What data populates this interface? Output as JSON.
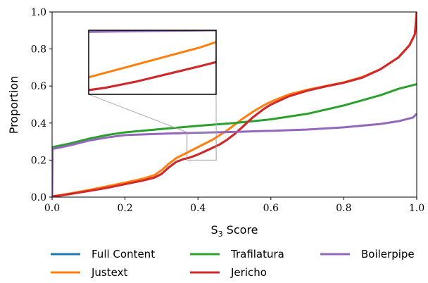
{
  "chart_data": {
    "type": "line",
    "title": "",
    "xlabel_main": "S",
    "xlabel_sub": "3",
    "xlabel_rest": " Score",
    "ylabel": "Proportion",
    "xlim": [
      0.0,
      1.0
    ],
    "ylim": [
      0.0,
      1.0
    ],
    "xticks": [
      "0.0",
      "0.2",
      "0.4",
      "0.6",
      "0.8",
      "1.0"
    ],
    "yticks": [
      "0.0",
      "0.2",
      "0.4",
      "0.6",
      "0.8",
      "1.0"
    ],
    "grid": false,
    "legend_position": "bottom",
    "inset": {
      "xlim": [
        0.37,
        0.45
      ],
      "ylim": [
        0.2,
        0.35
      ]
    },
    "series": [
      {
        "name": "Full Content",
        "color": "#1f77b4",
        "points": [
          [
            0,
            0.0
          ],
          [
            0.001,
            0.004
          ],
          [
            0.02,
            0.008
          ],
          [
            0.05,
            0.017
          ],
          [
            0.1,
            0.033
          ],
          [
            0.15,
            0.05
          ],
          [
            0.2,
            0.07
          ],
          [
            0.25,
            0.09
          ],
          [
            0.28,
            0.105
          ],
          [
            0.3,
            0.125
          ],
          [
            0.32,
            0.16
          ],
          [
            0.34,
            0.19
          ],
          [
            0.36,
            0.205
          ],
          [
            0.38,
            0.215
          ],
          [
            0.4,
            0.23
          ],
          [
            0.42,
            0.248
          ],
          [
            0.44,
            0.266
          ],
          [
            0.46,
            0.285
          ],
          [
            0.48,
            0.31
          ],
          [
            0.5,
            0.34
          ],
          [
            0.52,
            0.375
          ],
          [
            0.55,
            0.43
          ],
          [
            0.58,
            0.475
          ],
          [
            0.6,
            0.5
          ],
          [
            0.65,
            0.545
          ],
          [
            0.7,
            0.575
          ],
          [
            0.75,
            0.598
          ],
          [
            0.8,
            0.618
          ],
          [
            0.85,
            0.645
          ],
          [
            0.9,
            0.69
          ],
          [
            0.95,
            0.755
          ],
          [
            0.98,
            0.82
          ],
          [
            0.995,
            0.88
          ],
          [
            1.0,
            1.0
          ]
        ]
      },
      {
        "name": "Justext",
        "color": "#ff7f0e",
        "points": [
          [
            0,
            0.0
          ],
          [
            0.001,
            0.005
          ],
          [
            0.02,
            0.01
          ],
          [
            0.05,
            0.02
          ],
          [
            0.1,
            0.038
          ],
          [
            0.15,
            0.058
          ],
          [
            0.2,
            0.078
          ],
          [
            0.25,
            0.1
          ],
          [
            0.28,
            0.118
          ],
          [
            0.3,
            0.145
          ],
          [
            0.32,
            0.18
          ],
          [
            0.34,
            0.21
          ],
          [
            0.36,
            0.23
          ],
          [
            0.38,
            0.25
          ],
          [
            0.4,
            0.27
          ],
          [
            0.42,
            0.29
          ],
          [
            0.44,
            0.31
          ],
          [
            0.46,
            0.335
          ],
          [
            0.48,
            0.36
          ],
          [
            0.5,
            0.39
          ],
          [
            0.52,
            0.42
          ],
          [
            0.55,
            0.46
          ],
          [
            0.58,
            0.495
          ],
          [
            0.6,
            0.515
          ],
          [
            0.65,
            0.555
          ],
          [
            0.7,
            0.58
          ],
          [
            0.75,
            0.6
          ],
          [
            0.8,
            0.62
          ],
          [
            0.85,
            0.648
          ],
          [
            0.9,
            0.69
          ],
          [
            0.95,
            0.755
          ],
          [
            0.98,
            0.82
          ],
          [
            0.995,
            0.88
          ],
          [
            1.0,
            1.0
          ]
        ]
      },
      {
        "name": "Trafilatura",
        "color": "#2ca02c",
        "points": [
          [
            0,
            0.0
          ],
          [
            0.001,
            0.27
          ],
          [
            0.05,
            0.29
          ],
          [
            0.1,
            0.315
          ],
          [
            0.15,
            0.335
          ],
          [
            0.2,
            0.35
          ],
          [
            0.3,
            0.368
          ],
          [
            0.4,
            0.385
          ],
          [
            0.5,
            0.4
          ],
          [
            0.6,
            0.42
          ],
          [
            0.7,
            0.45
          ],
          [
            0.8,
            0.495
          ],
          [
            0.9,
            0.55
          ],
          [
            0.95,
            0.585
          ],
          [
            1.0,
            0.61
          ]
        ]
      },
      {
        "name": "Jericho",
        "color": "#d62728",
        "points": [
          [
            0,
            0.0
          ],
          [
            0.001,
            0.004
          ],
          [
            0.02,
            0.008
          ],
          [
            0.05,
            0.017
          ],
          [
            0.1,
            0.033
          ],
          [
            0.15,
            0.05
          ],
          [
            0.2,
            0.07
          ],
          [
            0.25,
            0.09
          ],
          [
            0.28,
            0.105
          ],
          [
            0.3,
            0.125
          ],
          [
            0.32,
            0.16
          ],
          [
            0.34,
            0.19
          ],
          [
            0.36,
            0.205
          ],
          [
            0.38,
            0.215
          ],
          [
            0.4,
            0.23
          ],
          [
            0.42,
            0.248
          ],
          [
            0.44,
            0.266
          ],
          [
            0.46,
            0.285
          ],
          [
            0.48,
            0.31
          ],
          [
            0.5,
            0.34
          ],
          [
            0.52,
            0.375
          ],
          [
            0.55,
            0.43
          ],
          [
            0.58,
            0.475
          ],
          [
            0.6,
            0.5
          ],
          [
            0.65,
            0.545
          ],
          [
            0.7,
            0.575
          ],
          [
            0.75,
            0.598
          ],
          [
            0.8,
            0.618
          ],
          [
            0.85,
            0.645
          ],
          [
            0.9,
            0.69
          ],
          [
            0.95,
            0.755
          ],
          [
            0.98,
            0.82
          ],
          [
            0.995,
            0.88
          ],
          [
            1.0,
            1.0
          ]
        ]
      },
      {
        "name": "Boilerpipe",
        "color": "#9467bd",
        "points": [
          [
            0,
            0.0
          ],
          [
            0.001,
            0.26
          ],
          [
            0.05,
            0.28
          ],
          [
            0.1,
            0.305
          ],
          [
            0.15,
            0.322
          ],
          [
            0.2,
            0.335
          ],
          [
            0.3,
            0.342
          ],
          [
            0.4,
            0.348
          ],
          [
            0.5,
            0.352
          ],
          [
            0.6,
            0.358
          ],
          [
            0.7,
            0.365
          ],
          [
            0.8,
            0.377
          ],
          [
            0.9,
            0.395
          ],
          [
            0.95,
            0.41
          ],
          [
            0.99,
            0.43
          ],
          [
            1.0,
            0.45
          ]
        ]
      }
    ]
  },
  "legend": {
    "rows": [
      [
        "Full Content",
        "Trafilatura",
        "Boilerpipe"
      ],
      [
        "Justext",
        "Jericho"
      ]
    ]
  }
}
